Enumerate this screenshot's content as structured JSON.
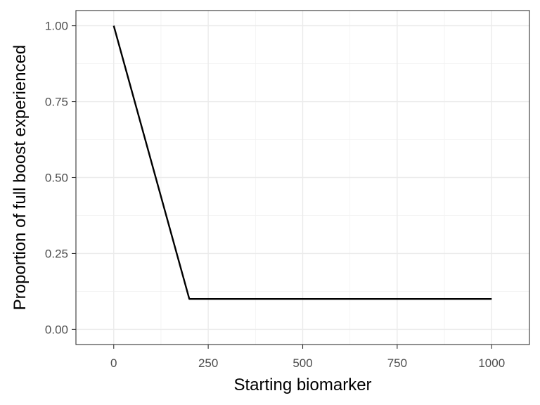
{
  "chart_data": {
    "type": "line",
    "title": "",
    "xlabel": "Starting biomarker",
    "ylabel": "Proportion of full boost experienced",
    "xlim": [
      -100,
      1100
    ],
    "ylim": [
      -0.05,
      1.05
    ],
    "x_ticks": [
      0,
      250,
      500,
      750,
      1000
    ],
    "x_tick_labels": [
      "0",
      "250",
      "500",
      "750",
      "1000"
    ],
    "y_ticks": [
      0,
      0.25,
      0.5,
      0.75,
      1
    ],
    "y_tick_labels": [
      "0.00",
      "0.25",
      "0.50",
      "0.75",
      "1.00"
    ],
    "grid": true,
    "legend": "none",
    "line_color": "#000000",
    "series": [
      {
        "x": [
          0,
          200,
          1000
        ],
        "y": [
          1.0,
          0.1,
          0.1
        ]
      }
    ]
  }
}
